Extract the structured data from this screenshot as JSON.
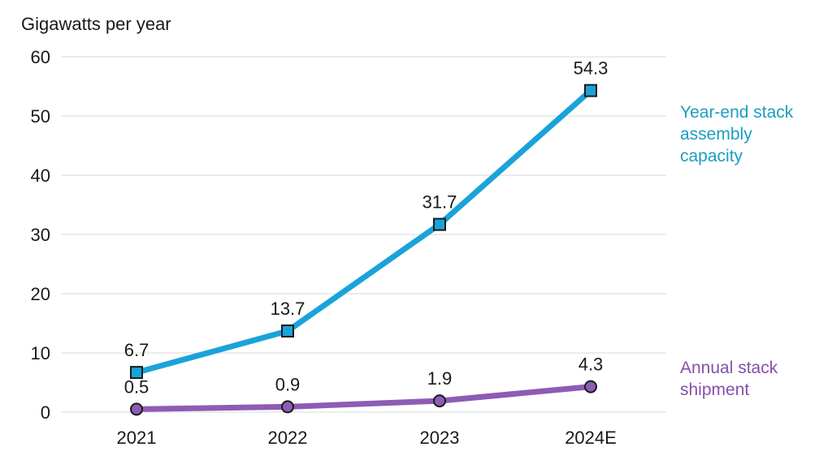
{
  "chart_data": {
    "type": "line",
    "ylabel": "Gigawatts per year",
    "categories": [
      "2021",
      "2022",
      "2023",
      "2024E"
    ],
    "ylim": [
      0,
      60
    ],
    "yticks": [
      0,
      10,
      20,
      30,
      40,
      50,
      60
    ],
    "grid": true,
    "series": [
      {
        "name": "Year-end stack\nassembly\ncapacity",
        "values": [
          6.7,
          13.7,
          31.7,
          54.3
        ],
        "labels": [
          "6.7",
          "13.7",
          "31.7",
          "54.3"
        ],
        "color": "#1aa3d9",
        "label_color": "#1b9dbf",
        "marker": "square"
      },
      {
        "name": "Annual stack\nshipment",
        "values": [
          0.5,
          0.9,
          1.9,
          4.3
        ],
        "labels": [
          "0.5",
          "0.9",
          "1.9",
          "4.3"
        ],
        "color": "#8e5bb5",
        "label_color": "#8650ad",
        "marker": "circle"
      }
    ]
  }
}
